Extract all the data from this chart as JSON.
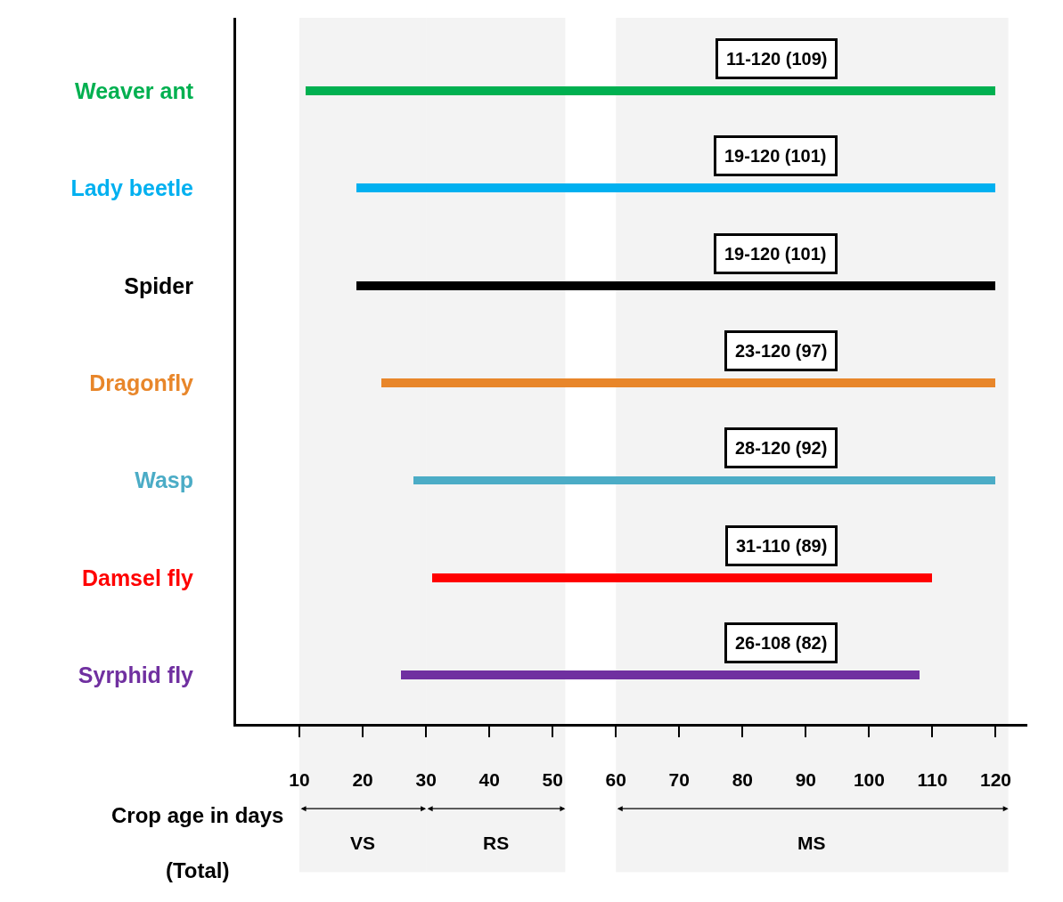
{
  "chart_data": {
    "type": "bar",
    "orientation": "horizontal",
    "categories": [
      "Weaver ant",
      "Lady beetle",
      "Spider",
      "Dragonfly",
      "Wasp",
      "Damsel fly",
      "Syrphid fly"
    ],
    "values": [
      109,
      101,
      101,
      97,
      92,
      79,
      82
    ],
    "base": [
      11,
      19,
      19,
      23,
      28,
      31,
      26
    ],
    "colors": [
      "#00b050",
      "#00b0f0",
      "#000000",
      "#e8862a",
      "#4bacc6",
      "#ff0000",
      "#7030a0"
    ],
    "value_labels": [
      "11-120 (109)",
      "19-120 (101)",
      "19-120 (101)",
      "23-120 (97)",
      "28-120 (92)",
      "31-110 (89)",
      "26-108 (82)"
    ],
    "xlim": [
      0,
      125
    ],
    "xticks": [
      10,
      20,
      30,
      40,
      50,
      60,
      70,
      80,
      90,
      100,
      110,
      120
    ],
    "xlabel": "Crop age in days\n(Total)",
    "bands": [
      {
        "axis": "x",
        "from": 10,
        "to": 30,
        "label": "VS",
        "color": "#f3f3f3"
      },
      {
        "axis": "x",
        "from": 30,
        "to": 52,
        "label": "RS",
        "color": "#f3f3f3"
      },
      {
        "axis": "x",
        "from": 60,
        "to": 122,
        "label": "MS",
        "color": "#f3f3f3"
      }
    ],
    "grid": false,
    "legend": false
  }
}
